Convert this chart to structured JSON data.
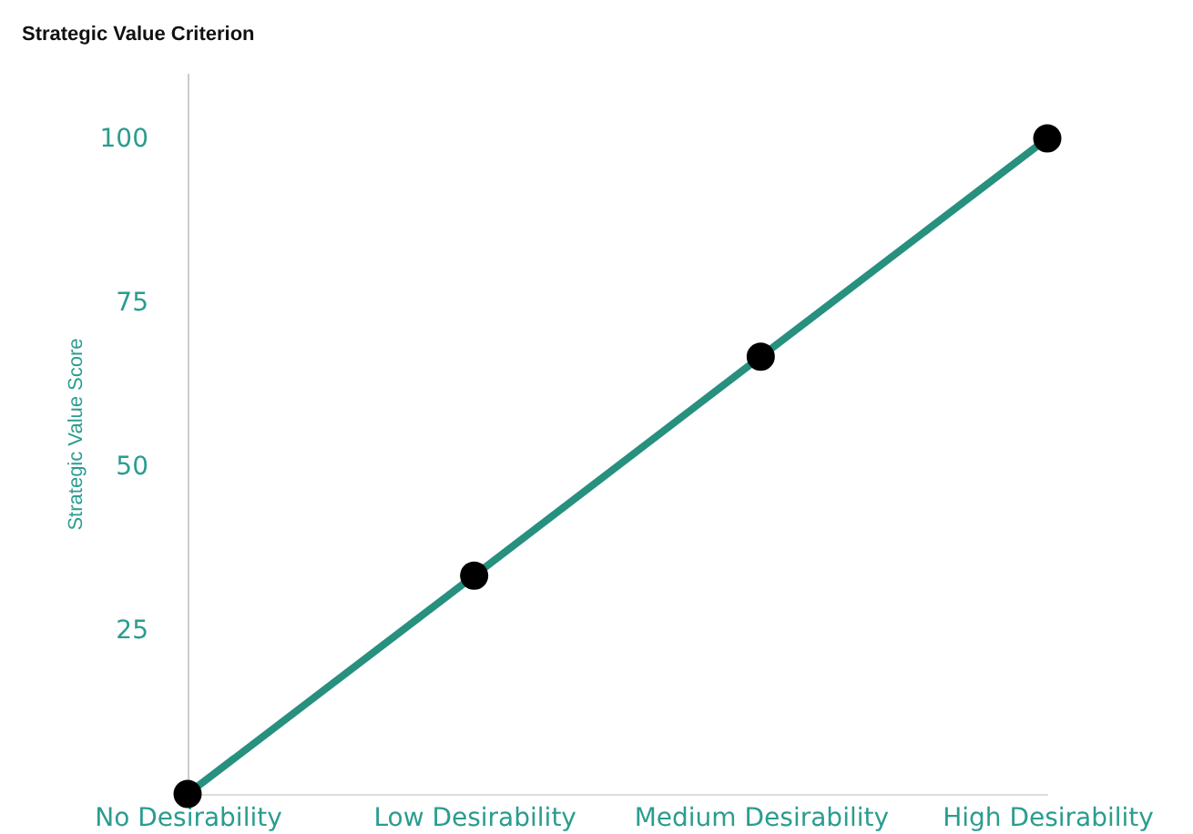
{
  "chart_data": {
    "type": "line",
    "title": "Strategic Value Criterion",
    "ylabel": "Strategic Value Score",
    "categories": [
      "No Desirability",
      "Low Desirability",
      "Medium Desirability",
      "High Desirability"
    ],
    "series": [
      {
        "color": "#27907f",
        "values": [
          0,
          33.3,
          66.7,
          100
        ]
      }
    ],
    "ylim": [
      0,
      110
    ],
    "yticks": [
      25,
      50,
      75,
      100
    ],
    "grid": false,
    "legend": false,
    "marker": "circle",
    "line_style": "solid"
  }
}
